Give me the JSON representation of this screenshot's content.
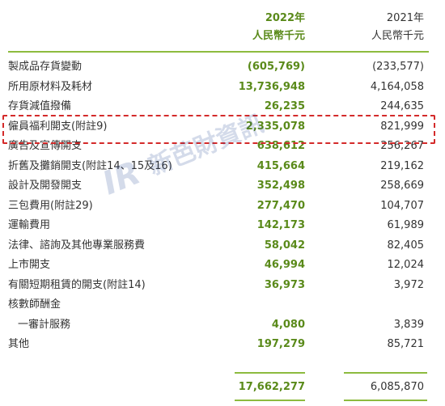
{
  "header": {
    "col_2022_year": "2022年",
    "col_2022_unit": "人民幣千元",
    "col_2021_year": "2021年",
    "col_2021_unit": "人民幣千元"
  },
  "rows": [
    {
      "label": "製成品存貨變動",
      "v2022": "(605,769)",
      "v2021": "(233,577)"
    },
    {
      "label": "所用原材料及耗材",
      "v2022": "13,736,948",
      "v2021": "4,164,058"
    },
    {
      "label": "存貨減值撥備",
      "v2022": "26,235",
      "v2021": "244,635"
    },
    {
      "label": "僱員福利開支(附註9)",
      "v2022": "2,335,078",
      "v2021": "821,999"
    },
    {
      "label": "廣告及宣傳開支",
      "v2022": "638,612",
      "v2021": "256,267"
    },
    {
      "label": "折舊及攤銷開支(附註14、15及16)",
      "v2022": "415,664",
      "v2021": "219,162"
    },
    {
      "label": "設計及開發開支",
      "v2022": "352,498",
      "v2021": "258,669"
    },
    {
      "label": "三包費用(附註29)",
      "v2022": "277,470",
      "v2021": "104,707"
    },
    {
      "label": "運輸費用",
      "v2022": "142,173",
      "v2021": "61,989"
    },
    {
      "label": "法律、諮詢及其他專業服務費",
      "v2022": "58,042",
      "v2021": "82,405"
    },
    {
      "label": "上市開支",
      "v2022": "46,994",
      "v2021": "12,024"
    },
    {
      "label": "有關短期租賃的開支(附註14)",
      "v2022": "36,973",
      "v2021": "3,972"
    },
    {
      "label": "核數師酬金",
      "v2022": "",
      "v2021": ""
    },
    {
      "label": "一審計服務",
      "v2022": "4,080",
      "v2021": "3,839"
    },
    {
      "label": "其他",
      "v2022": "197,279",
      "v2021": "85,721"
    }
  ],
  "total": {
    "v2022": "17,662,277",
    "v2021": "6,085,870"
  },
  "watermark_text": "新芭財資訊",
  "colors": {
    "accent_green": "#5a8a1a",
    "rule_green": "#8dbb3e",
    "highlight_red": "#d42a2a"
  }
}
